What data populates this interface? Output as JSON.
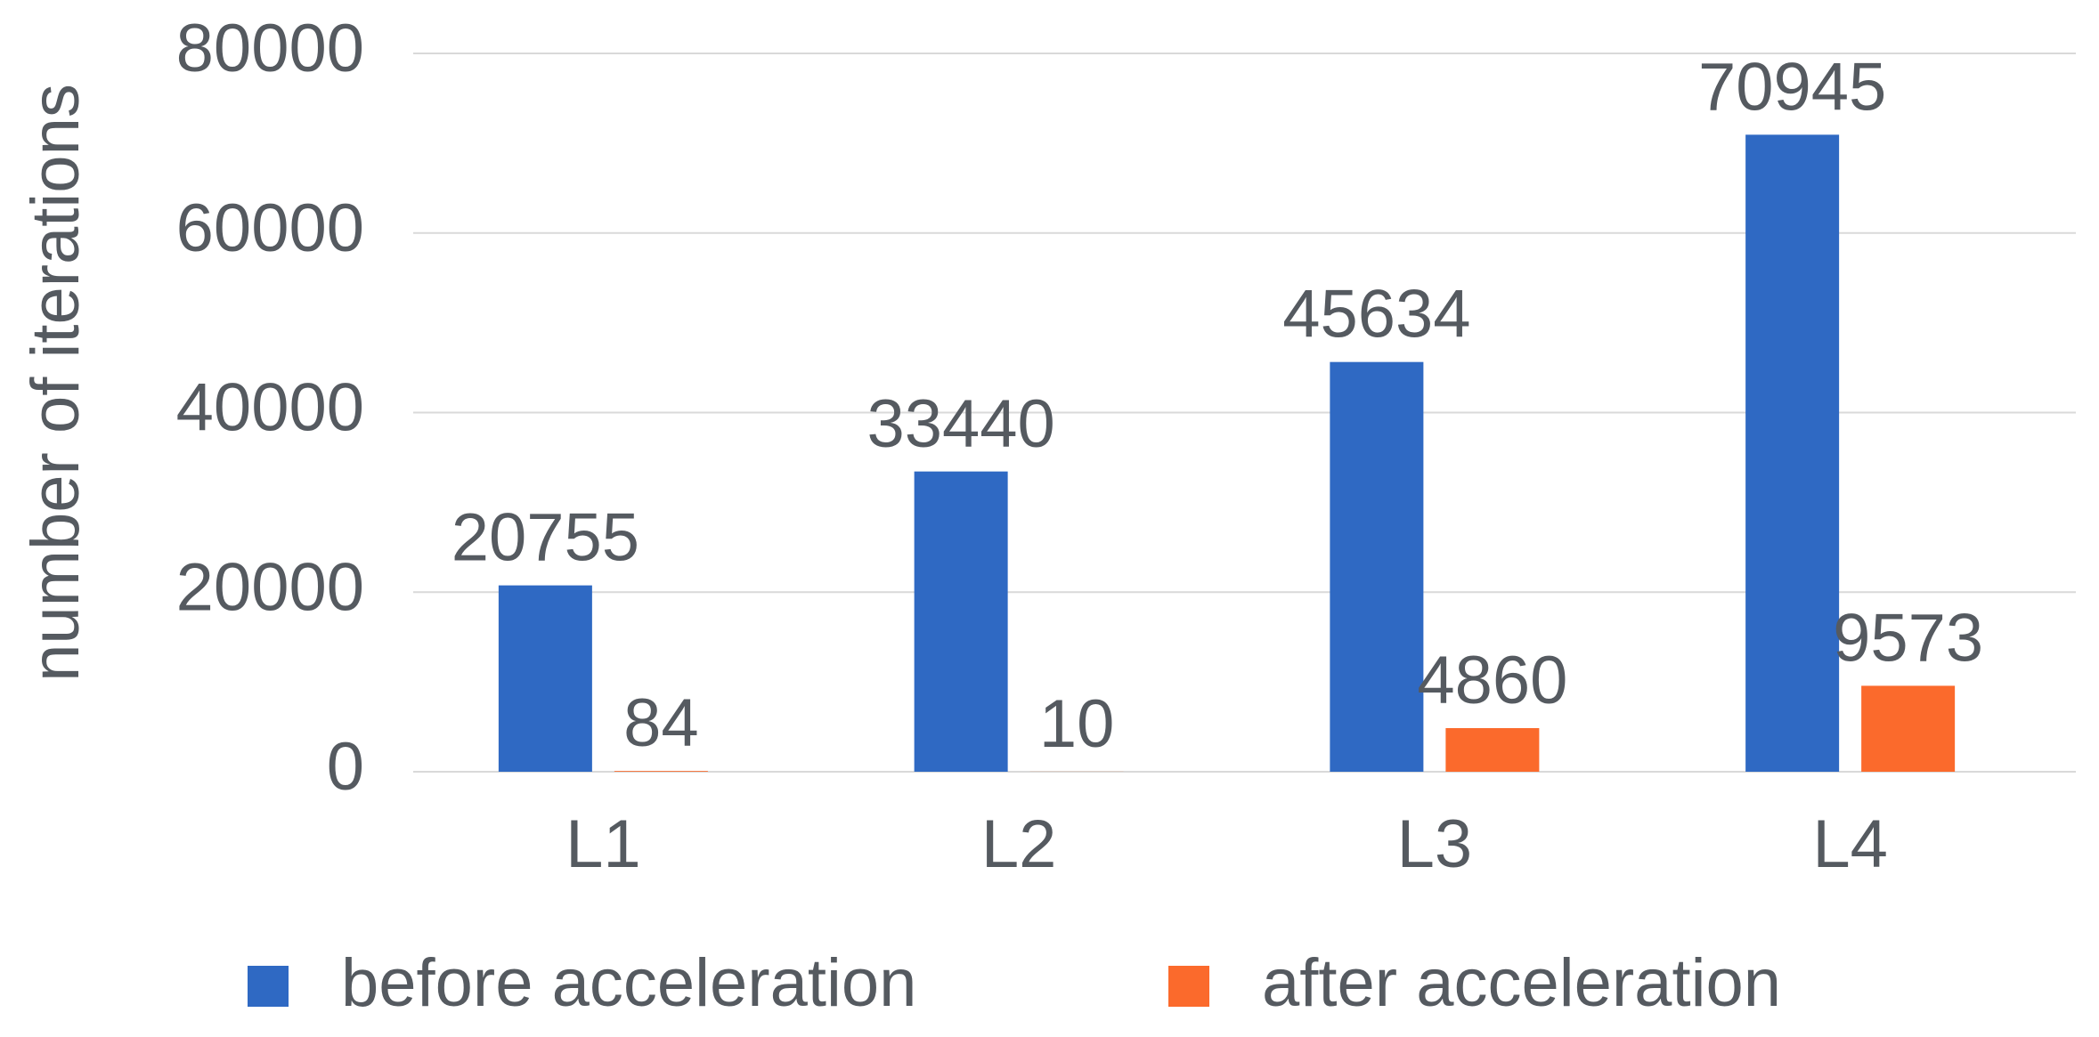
{
  "chart_data": {
    "type": "bar",
    "y_label": "number of iterations",
    "categories": [
      "L1",
      "L2",
      "L3",
      "L4"
    ],
    "series": [
      {
        "name": "before acceleration",
        "color": "#2f69c3",
        "values": [
          20755,
          33440,
          45634,
          70945
        ]
      },
      {
        "name": "after acceleration",
        "color": "#fb6a2c",
        "values": [
          84,
          10,
          4860,
          9573
        ]
      }
    ],
    "ylim": [
      0,
      80000
    ],
    "yticks": [
      0,
      20000,
      40000,
      60000,
      80000
    ],
    "grid": true,
    "legend": "bottom"
  }
}
